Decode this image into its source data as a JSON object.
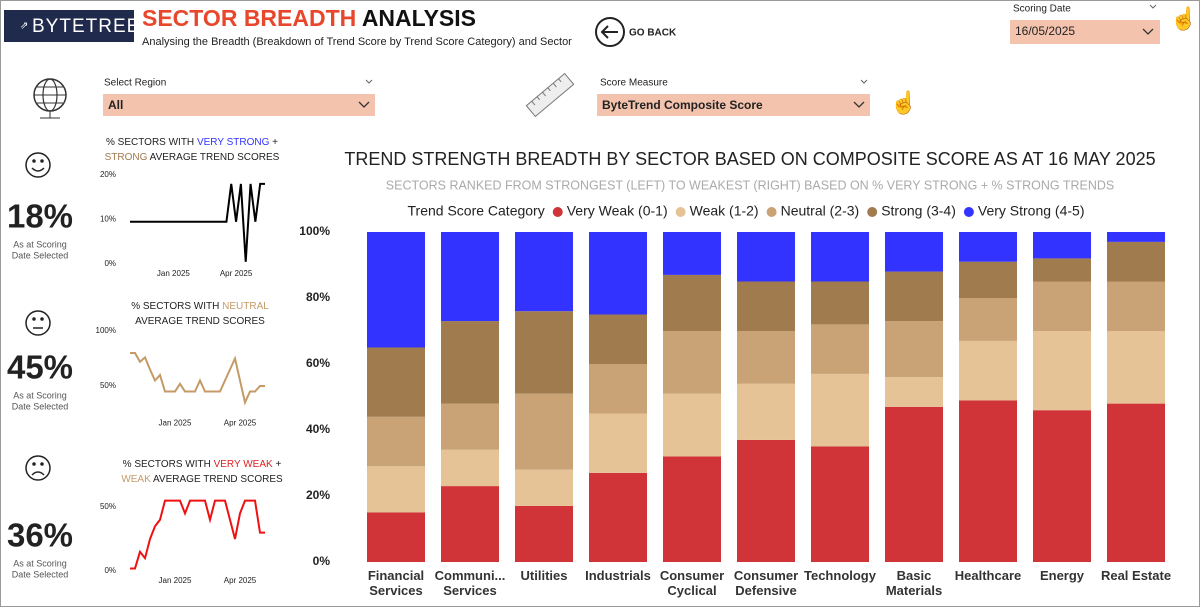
{
  "header": {
    "logo": "BYTETREE",
    "title_parts": [
      "SECTOR BREADTH",
      "ANALYSIS"
    ],
    "subtitle": "Analysing the Breadth (Breakdown of Trend Score by Trend Score Category) and Sector",
    "go_back": "GO BACK"
  },
  "filters": {
    "scoring_date_label": "Scoring Date",
    "scoring_date": "16/05/2025",
    "region_label": "Select Region",
    "region": "All",
    "measure_label": "Score Measure",
    "measure": "ByteTrend Composite Score"
  },
  "kpis": [
    {
      "value": "18%",
      "caption": [
        "As at Scoring",
        "Date Selected"
      ]
    },
    {
      "value": "45%",
      "caption": [
        "As at Scoring",
        "Date Selected"
      ]
    },
    {
      "value": "36%",
      "caption": [
        "As at Scoring",
        "Date Selected"
      ]
    }
  ],
  "chart_data": [
    {
      "type": "stacked_bar",
      "title": "TREND STRENGTH BREADTH BY SECTOR BASED ON COMPOSITE SCORE AS AT 16 MAY 2025",
      "subtitle": "SECTORS RANKED FROM STRONGEST (LEFT) TO WEAKEST (RIGHT) BASED ON % VERY STRONG + % STRONG TRENDS",
      "legend_title": "Trend Score Category",
      "categories": [
        "Financial Services",
        "Communi... Services",
        "Utilities",
        "Industrials",
        "Consumer Cyclical",
        "Consumer Defensive",
        "Technology",
        "Basic Materials",
        "Healthcare",
        "Energy",
        "Real Estate"
      ],
      "series": [
        {
          "name": "Very Weak (0-1)",
          "color": "#d13438",
          "values": [
            15,
            23,
            17,
            27,
            32,
            37,
            35,
            47,
            49,
            46,
            48
          ]
        },
        {
          "name": "Weak (1-2)",
          "color": "#e6c397",
          "values": [
            14,
            11,
            11,
            18,
            19,
            17,
            22,
            9,
            18,
            24,
            22
          ]
        },
        {
          "name": "Neutral (2-3)",
          "color": "#c9a275",
          "values": [
            15,
            14,
            23,
            15,
            19,
            16,
            15,
            17,
            13,
            15,
            15
          ]
        },
        {
          "name": "Strong (3-4)",
          "color": "#a07b4e",
          "values": [
            21,
            25,
            25,
            15,
            17,
            15,
            13,
            15,
            11,
            7,
            12
          ]
        },
        {
          "name": "Very Strong (4-5)",
          "color": "#3333ff",
          "values": [
            35,
            27,
            24,
            25,
            13,
            15,
            15,
            12,
            9,
            8,
            3
          ]
        }
      ],
      "ylim": [
        0,
        100
      ],
      "yticks": [
        {
          "value": 0,
          "label": "0%"
        },
        {
          "value": 20,
          "label": "20%"
        },
        {
          "value": 40,
          "label": "40%"
        },
        {
          "value": 60,
          "label": "60%"
        },
        {
          "value": 80,
          "label": "80%"
        },
        {
          "value": 100,
          "label": "100%"
        }
      ]
    },
    {
      "type": "line",
      "title_lines": [
        [
          "% SECTORS WITH ",
          "VERY STRONG",
          " +"
        ],
        [
          "STRONG",
          " AVERAGE TREND SCORES"
        ]
      ],
      "color": "#000000",
      "categories": [
        null,
        null,
        null,
        null,
        null,
        null,
        null,
        null,
        null,
        "Jan 2025",
        null,
        null,
        null,
        null,
        null,
        null,
        null,
        null,
        null,
        null,
        null,
        null,
        "Apr 2025",
        null,
        null,
        null,
        null,
        null,
        null
      ],
      "values": [
        9.5,
        9.5,
        9.5,
        9.5,
        9.5,
        9.5,
        9.5,
        9.5,
        9.5,
        9.5,
        9.5,
        9.5,
        9.5,
        9.5,
        9.5,
        9.5,
        9.5,
        9.5,
        9.5,
        9.5,
        9.5,
        18,
        9.5,
        18,
        0.5,
        18,
        9.5,
        18,
        18
      ],
      "ylim": [
        0,
        20
      ],
      "yticks": [
        {
          "value": 0,
          "label": "0%"
        },
        {
          "value": 10,
          "label": "10%"
        },
        {
          "value": 20,
          "label": "20%"
        }
      ]
    },
    {
      "type": "line",
      "title_lines": [
        [
          "% SECTORS WITH ",
          "NEUTRAL"
        ],
        [
          "AVERAGE TREND SCORES"
        ]
      ],
      "color": "#c49a66",
      "categories": [
        null,
        null,
        null,
        null,
        null,
        null,
        null,
        null,
        null,
        "Jan 2025",
        null,
        null,
        null,
        null,
        null,
        null,
        null,
        null,
        null,
        null,
        null,
        null,
        "Apr 2025",
        null,
        null,
        null,
        null,
        null
      ],
      "values": [
        80,
        80,
        72,
        76,
        65,
        55,
        60,
        45,
        45,
        45,
        52,
        45,
        45,
        45,
        55,
        45,
        45,
        45,
        45,
        55,
        65,
        75,
        55,
        35,
        45,
        45,
        50,
        50
      ],
      "ylim": [
        25,
        100
      ],
      "yticks": [
        {
          "value": 50,
          "label": "50%"
        },
        {
          "value": 100,
          "label": "100%"
        }
      ]
    },
    {
      "type": "line",
      "title_lines": [
        [
          "% SECTORS WITH ",
          "VERY WEAK",
          " +"
        ],
        [
          "WEAK",
          " AVERAGE TREND SCORES"
        ]
      ],
      "color": "#ee1111",
      "categories": [
        null,
        null,
        null,
        null,
        null,
        null,
        null,
        null,
        null,
        "Jan 2025",
        null,
        null,
        null,
        null,
        null,
        null,
        null,
        null,
        null,
        null,
        null,
        null,
        "Apr 2025",
        null,
        null,
        null,
        null,
        null
      ],
      "values": [
        2,
        2,
        15,
        10,
        25,
        35,
        40,
        55,
        55,
        55,
        55,
        45,
        55,
        55,
        55,
        55,
        40,
        55,
        55,
        55,
        40,
        25,
        45,
        55,
        55,
        55,
        30,
        30
      ],
      "ylim": [
        0,
        60
      ],
      "yticks": [
        {
          "value": 0,
          "label": "0%"
        },
        {
          "value": 50,
          "label": "50%"
        }
      ]
    }
  ]
}
